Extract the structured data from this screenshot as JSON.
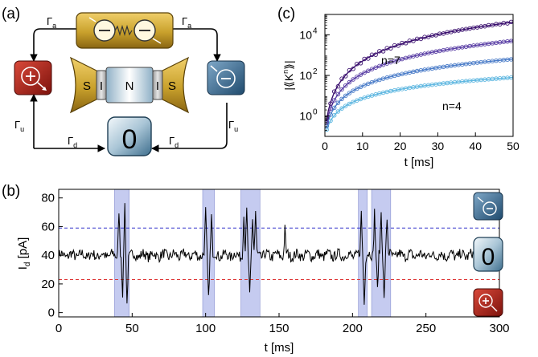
{
  "panels": {
    "a": "(a)",
    "b": "(b)",
    "c": "(c)"
  },
  "diagram": {
    "rates": {
      "gamma_a": "Γ",
      "sub_a": "a",
      "gamma_u": "Γ",
      "sub_u": "u",
      "gamma_d": "Γ",
      "sub_d": "d"
    },
    "junction_letters": [
      "S",
      "I",
      "N",
      "I",
      "S"
    ],
    "zero_state": "0",
    "colors": {
      "gold": "#c9a12c",
      "gold_dark": "#7a5c10",
      "red_state": "#b8261c",
      "blue_state": "#3d6f95",
      "zero_state": "#8fb0c6"
    },
    "icons": [
      "plus-charge-icon",
      "minus-charge-icon",
      "electron-pair-icon",
      "zero-state-icon"
    ]
  },
  "chart_data": [
    {
      "panel": "b",
      "type": "line",
      "xlabel": "t [ms]",
      "ylabel_main": "I",
      "ylabel_sub": "d",
      "ylabel_unit": " [pA]",
      "xlim": [
        0,
        300
      ],
      "ylim": [
        -3,
        86
      ],
      "xticks": [
        0,
        50,
        100,
        150,
        200,
        250,
        300
      ],
      "yticks": [
        0,
        20,
        40,
        60,
        80
      ],
      "baseline": 40,
      "upper_threshold": 59,
      "lower_threshold": 23,
      "threshold_colors": {
        "upper": "#3333cc",
        "lower": "#dd3333"
      },
      "highlight_color": "#c5cbf0",
      "highlight_intervals": [
        [
          38,
          48
        ],
        [
          98,
          106
        ],
        [
          124,
          137
        ],
        [
          204,
          210
        ],
        [
          213,
          226
        ]
      ],
      "events": [
        {
          "t": 41.0,
          "amp": 33
        },
        {
          "t": 43.5,
          "amp": -28
        },
        {
          "t": 45.0,
          "amp": 35
        },
        {
          "t": 46.5,
          "amp": -33
        },
        {
          "t": 100.0,
          "amp": 30
        },
        {
          "t": 102.0,
          "amp": -30
        },
        {
          "t": 104.0,
          "amp": 28
        },
        {
          "t": 126.0,
          "amp": 27
        },
        {
          "t": 128.0,
          "amp": 30
        },
        {
          "t": 130.0,
          "amp": -28
        },
        {
          "t": 132.0,
          "amp": 27
        },
        {
          "t": 134.0,
          "amp": 29
        },
        {
          "t": 154.0,
          "amp": 18
        },
        {
          "t": 206.0,
          "amp": 30
        },
        {
          "t": 208.0,
          "amp": -33
        },
        {
          "t": 215.0,
          "amp": 32
        },
        {
          "t": 217.0,
          "amp": -25
        },
        {
          "t": 219.5,
          "amp": 30
        },
        {
          "t": 221.5,
          "amp": -30
        },
        {
          "t": 223.5,
          "amp": 26
        }
      ],
      "state_labels": {
        "zero": "0"
      }
    },
    {
      "panel": "c",
      "type": "line",
      "xlabel": "t [ms]",
      "ylabel": "|⟪K",
      "ylabel_sup": "n",
      "ylabel_end": "⟫|",
      "scale": "log",
      "xlim": [
        0,
        50
      ],
      "ylim_log10": [
        -1.0,
        5.0
      ],
      "xticks": [
        0,
        10,
        20,
        30,
        40,
        50
      ],
      "yticks": [
        {
          "base": "10",
          "exp": "0",
          "log10": 0
        },
        {
          "base": "10",
          "exp": "2",
          "log10": 2
        },
        {
          "base": "10",
          "exp": "4",
          "log10": 4
        }
      ],
      "series": [
        {
          "order": 4,
          "label": "n=4",
          "color": "#5cb6e0",
          "log10_at_50": 1.9
        },
        {
          "order": 5,
          "color": "#4a7cc8",
          "log10_at_50": 2.8
        },
        {
          "order": 6,
          "color": "#5a3fa5",
          "log10_at_50": 3.7
        },
        {
          "order": 7,
          "label": "n=7",
          "color": "#3a0f6e",
          "log10_at_50": 4.62
        }
      ]
    }
  ]
}
